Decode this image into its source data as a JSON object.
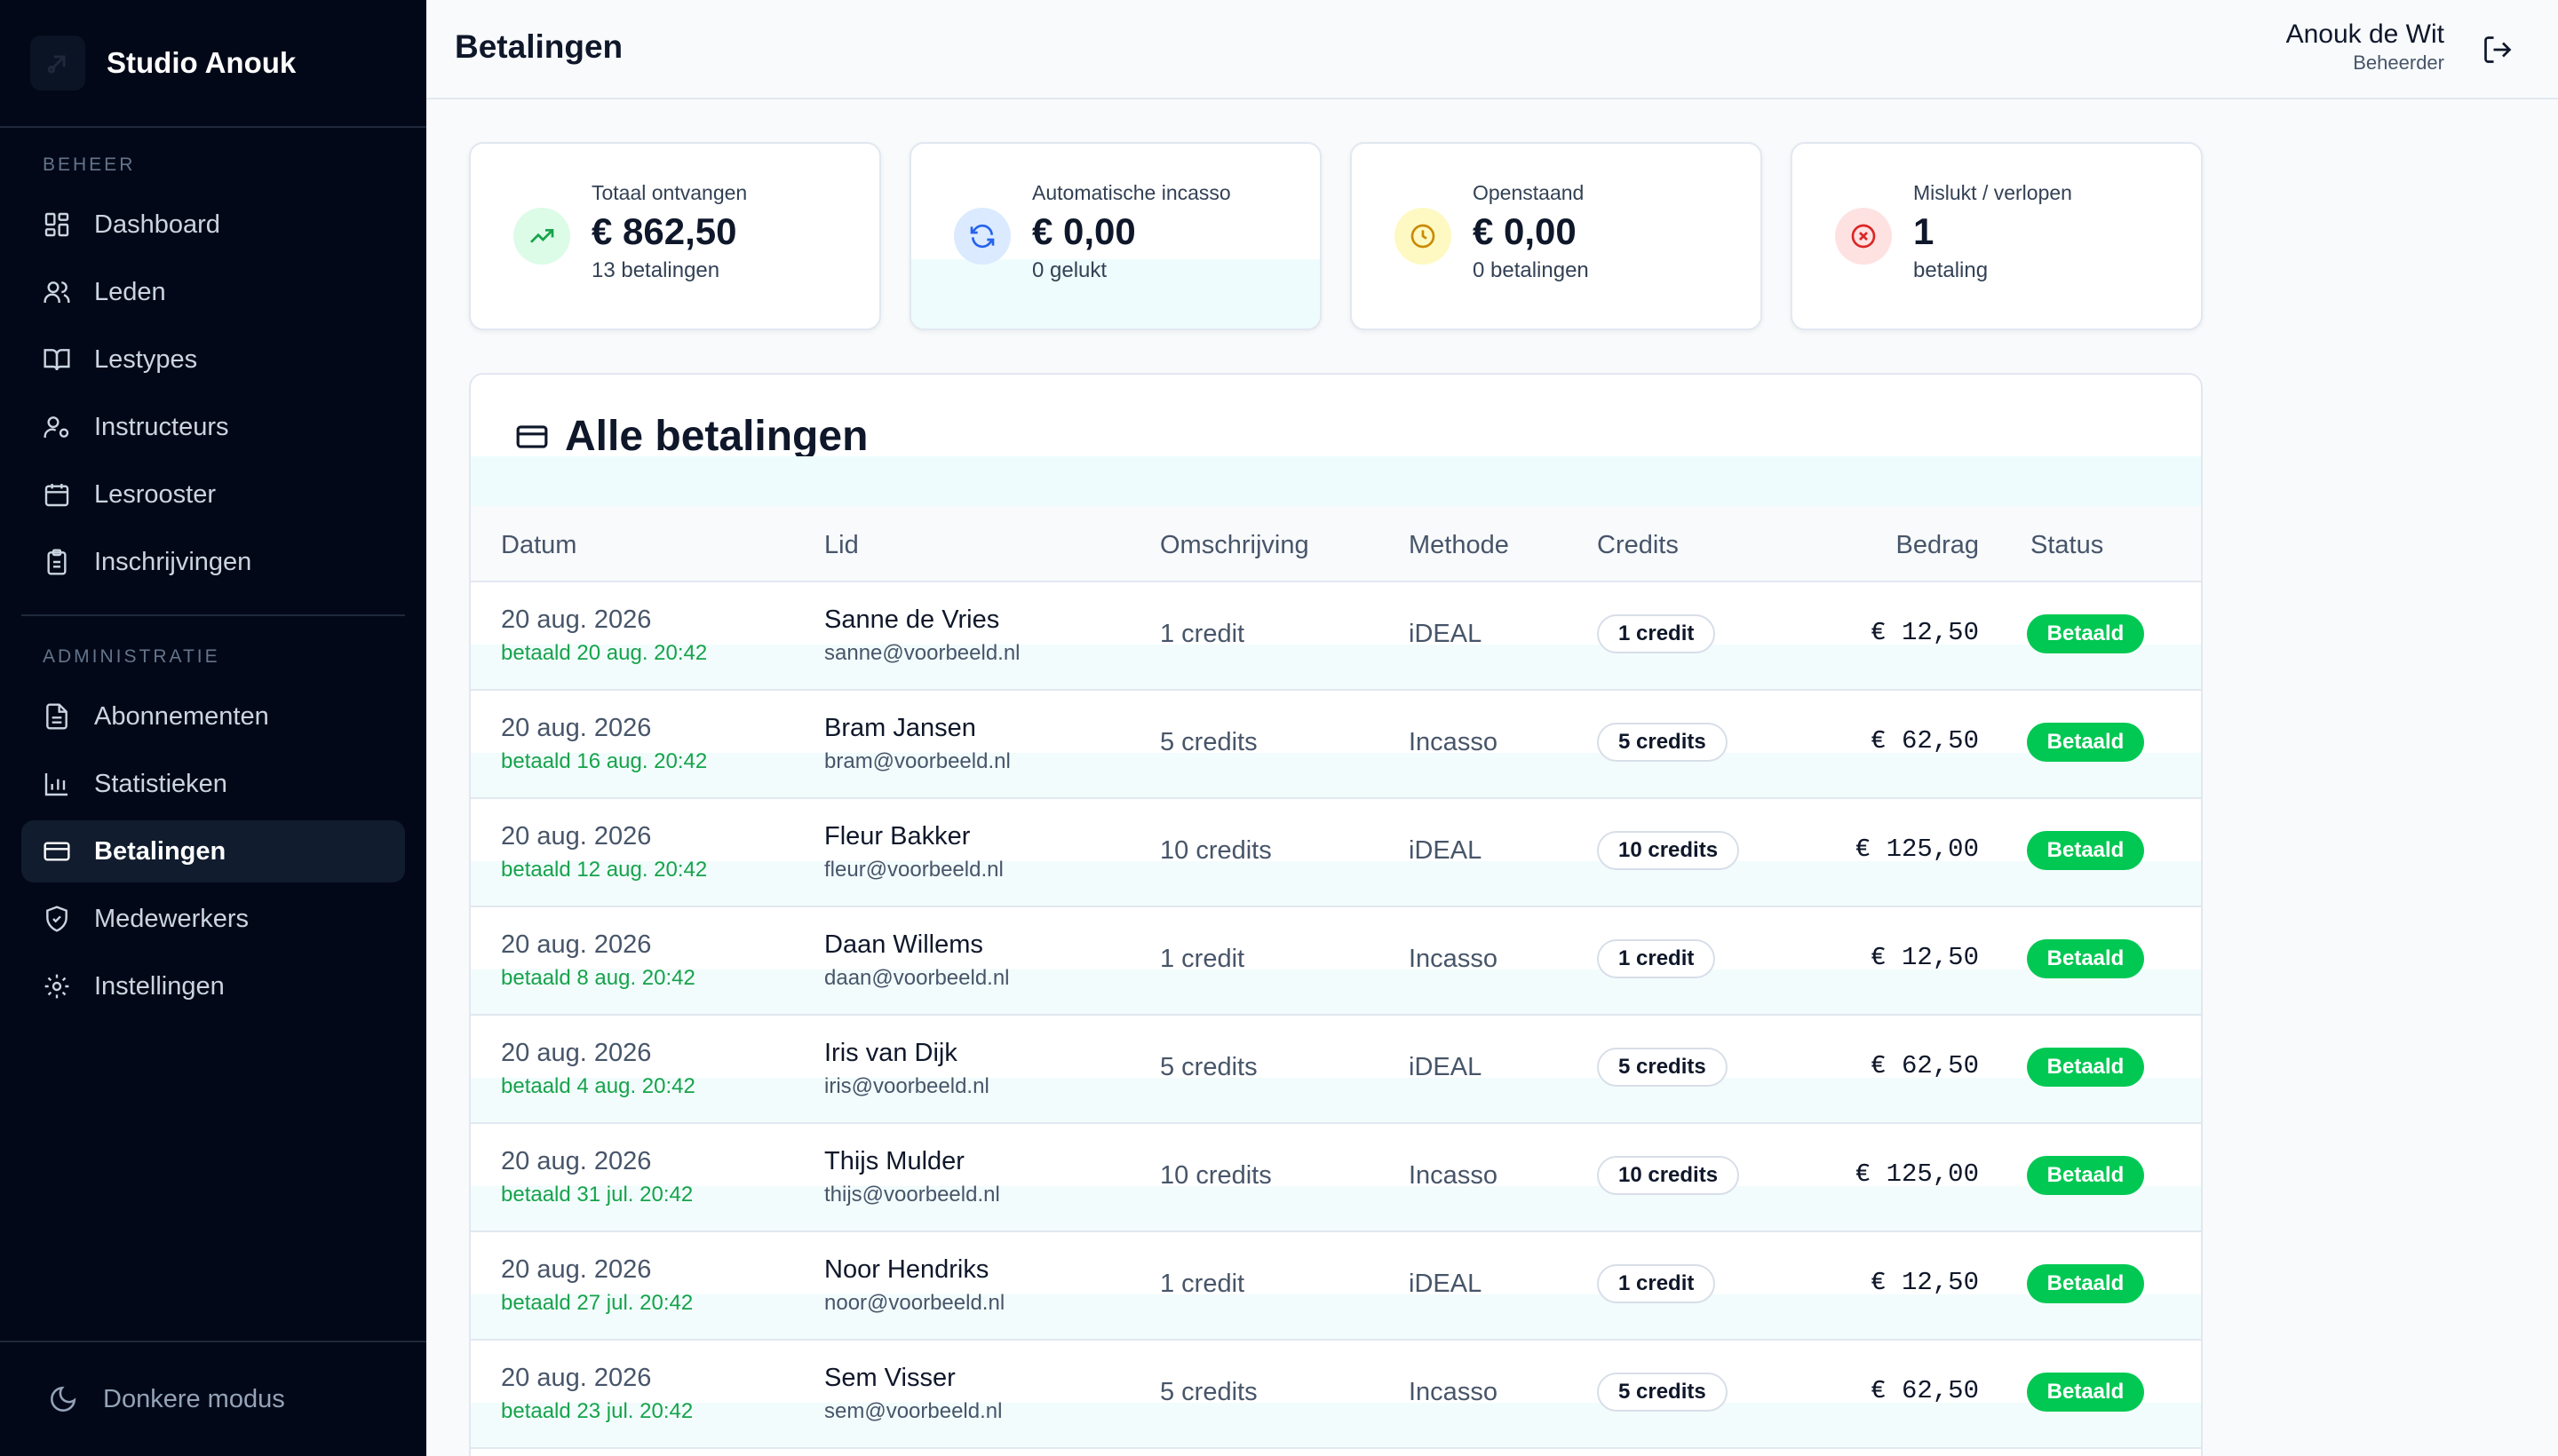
{
  "sidebar": {
    "brand": "Studio Anouk",
    "section_beheer": "BEHEER",
    "section_administratie": "ADMINISTRATIE",
    "beheer_items": [
      {
        "label": "Dashboard",
        "icon": "dashboard-icon"
      },
      {
        "label": "Leden",
        "icon": "users-icon"
      },
      {
        "label": "Lestypes",
        "icon": "book-icon"
      },
      {
        "label": "Instructeurs",
        "icon": "user-cog-icon"
      },
      {
        "label": "Lesrooster",
        "icon": "calendar-icon"
      },
      {
        "label": "Inschrijvingen",
        "icon": "clipboard-icon"
      }
    ],
    "admin_items": [
      {
        "label": "Abonnementen",
        "icon": "file-text-icon"
      },
      {
        "label": "Statistieken",
        "icon": "bar-chart-icon"
      },
      {
        "label": "Betalingen",
        "icon": "credit-card-icon",
        "active": true
      },
      {
        "label": "Medewerkers",
        "icon": "shield-icon"
      },
      {
        "label": "Instellingen",
        "icon": "gear-icon"
      }
    ],
    "dark_mode": "Donkere modus"
  },
  "header": {
    "title": "Betalingen",
    "user_name": "Anouk de Wit",
    "user_role": "Beheerder"
  },
  "stats": [
    {
      "label": "Totaal ontvangen",
      "value": "€ 862,50",
      "sub": "13 betalingen",
      "icon": "trending-up-icon",
      "color": "#16a34a",
      "bg": "#dcfce7"
    },
    {
      "label": "Automatische incasso",
      "value": "€ 0,00",
      "sub": "0 gelukt",
      "icon": "refresh-icon",
      "color": "#2563eb",
      "bg": "#dbeafe"
    },
    {
      "label": "Openstaand",
      "value": "€ 0,00",
      "sub": "0 betalingen",
      "icon": "clock-icon",
      "color": "#ca8a04",
      "bg": "#fef9c3"
    },
    {
      "label": "Mislukt / verlopen",
      "value": "1",
      "sub": "betaling",
      "icon": "x-circle-icon",
      "color": "#dc2626",
      "bg": "#fee2e2"
    }
  ],
  "payments": {
    "title": "Alle betalingen",
    "columns": {
      "date": "Datum",
      "member": "Lid",
      "description": "Omschrijving",
      "method": "Methode",
      "credits": "Credits",
      "amount": "Bedrag",
      "status": "Status"
    },
    "rows": [
      {
        "date": "20 aug. 2026",
        "paid": "betaald 20 aug. 20:42",
        "name": "Sanne de Vries",
        "email": "sanne@voorbeeld.nl",
        "description": "1 credit",
        "method": "iDEAL",
        "credits": "1 credit",
        "amount": "€ 12,50",
        "status": "Betaald"
      },
      {
        "date": "20 aug. 2026",
        "paid": "betaald 16 aug. 20:42",
        "name": "Bram Jansen",
        "email": "bram@voorbeeld.nl",
        "description": "5 credits",
        "method": "Incasso",
        "credits": "5 credits",
        "amount": "€ 62,50",
        "status": "Betaald"
      },
      {
        "date": "20 aug. 2026",
        "paid": "betaald 12 aug. 20:42",
        "name": "Fleur Bakker",
        "email": "fleur@voorbeeld.nl",
        "description": "10 credits",
        "method": "iDEAL",
        "credits": "10 credits",
        "amount": "€ 125,00",
        "status": "Betaald"
      },
      {
        "date": "20 aug. 2026",
        "paid": "betaald 8 aug. 20:42",
        "name": "Daan Willems",
        "email": "daan@voorbeeld.nl",
        "description": "1 credit",
        "method": "Incasso",
        "credits": "1 credit",
        "amount": "€ 12,50",
        "status": "Betaald"
      },
      {
        "date": "20 aug. 2026",
        "paid": "betaald 4 aug. 20:42",
        "name": "Iris van Dijk",
        "email": "iris@voorbeeld.nl",
        "description": "5 credits",
        "method": "iDEAL",
        "credits": "5 credits",
        "amount": "€ 62,50",
        "status": "Betaald"
      },
      {
        "date": "20 aug. 2026",
        "paid": "betaald 31 jul. 20:42",
        "name": "Thijs Mulder",
        "email": "thijs@voorbeeld.nl",
        "description": "10 credits",
        "method": "Incasso",
        "credits": "10 credits",
        "amount": "€ 125,00",
        "status": "Betaald"
      },
      {
        "date": "20 aug. 2026",
        "paid": "betaald 27 jul. 20:42",
        "name": "Noor Hendriks",
        "email": "noor@voorbeeld.nl",
        "description": "1 credit",
        "method": "iDEAL",
        "credits": "1 credit",
        "amount": "€ 12,50",
        "status": "Betaald"
      },
      {
        "date": "20 aug. 2026",
        "paid": "betaald 23 jul. 20:42",
        "name": "Sem Visser",
        "email": "sem@voorbeeld.nl",
        "description": "5 credits",
        "method": "Incasso",
        "credits": "5 credits",
        "amount": "€ 62,50",
        "status": "Betaald"
      }
    ]
  }
}
